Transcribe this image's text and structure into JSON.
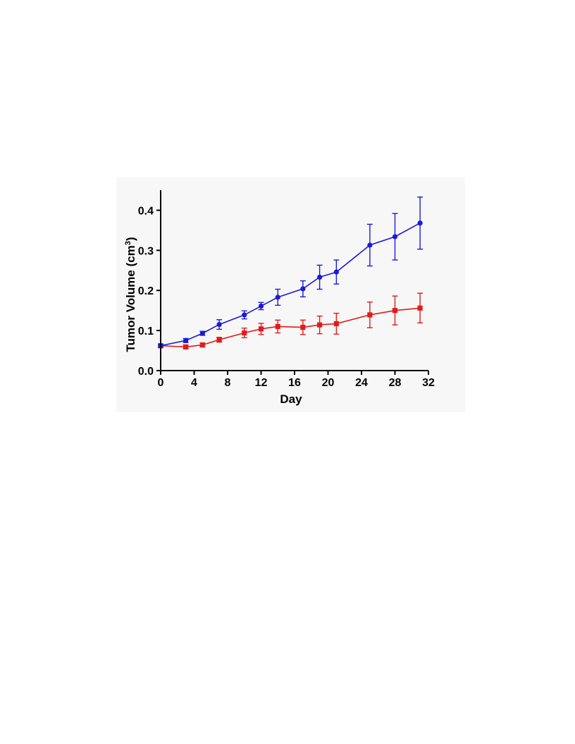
{
  "chart_data": {
    "type": "line",
    "xlabel": "Day",
    "ylabel": "Tumor Volume (cm",
    "ylabel_superscript": "3",
    "ylabel_suffix": ")",
    "xlim": [
      0,
      32
    ],
    "ylim": [
      0,
      0.45
    ],
    "xticks": [
      0,
      4,
      8,
      12,
      16,
      20,
      24,
      28,
      32
    ],
    "yticks": [
      0.0,
      0.1,
      0.2,
      0.3,
      0.4
    ],
    "ytick_labels": [
      "0.0",
      "0.1",
      "0.2",
      "0.3",
      "0.4"
    ],
    "grid": false,
    "legend": "none",
    "series": [
      {
        "color": "#1a1adb",
        "marker": "circle",
        "x": [
          0,
          3,
          5,
          7,
          10,
          12,
          14,
          17,
          19,
          21,
          25,
          28,
          31
        ],
        "y": [
          0.062,
          0.075,
          0.093,
          0.115,
          0.139,
          0.161,
          0.183,
          0.204,
          0.233,
          0.246,
          0.313,
          0.334,
          0.368
        ],
        "error": [
          0.004,
          0.005,
          0.005,
          0.012,
          0.01,
          0.009,
          0.02,
          0.02,
          0.03,
          0.03,
          0.052,
          0.058,
          0.065
        ]
      },
      {
        "color": "#e21b1b",
        "marker": "square",
        "x": [
          0,
          3,
          5,
          7,
          10,
          12,
          14,
          17,
          19,
          21,
          25,
          28,
          31
        ],
        "y": [
          0.062,
          0.059,
          0.064,
          0.077,
          0.094,
          0.104,
          0.11,
          0.108,
          0.114,
          0.117,
          0.139,
          0.15,
          0.156
        ],
        "error": [
          0.004,
          0.005,
          0.005,
          0.006,
          0.012,
          0.014,
          0.016,
          0.018,
          0.022,
          0.026,
          0.032,
          0.036,
          0.037
        ]
      }
    ]
  }
}
